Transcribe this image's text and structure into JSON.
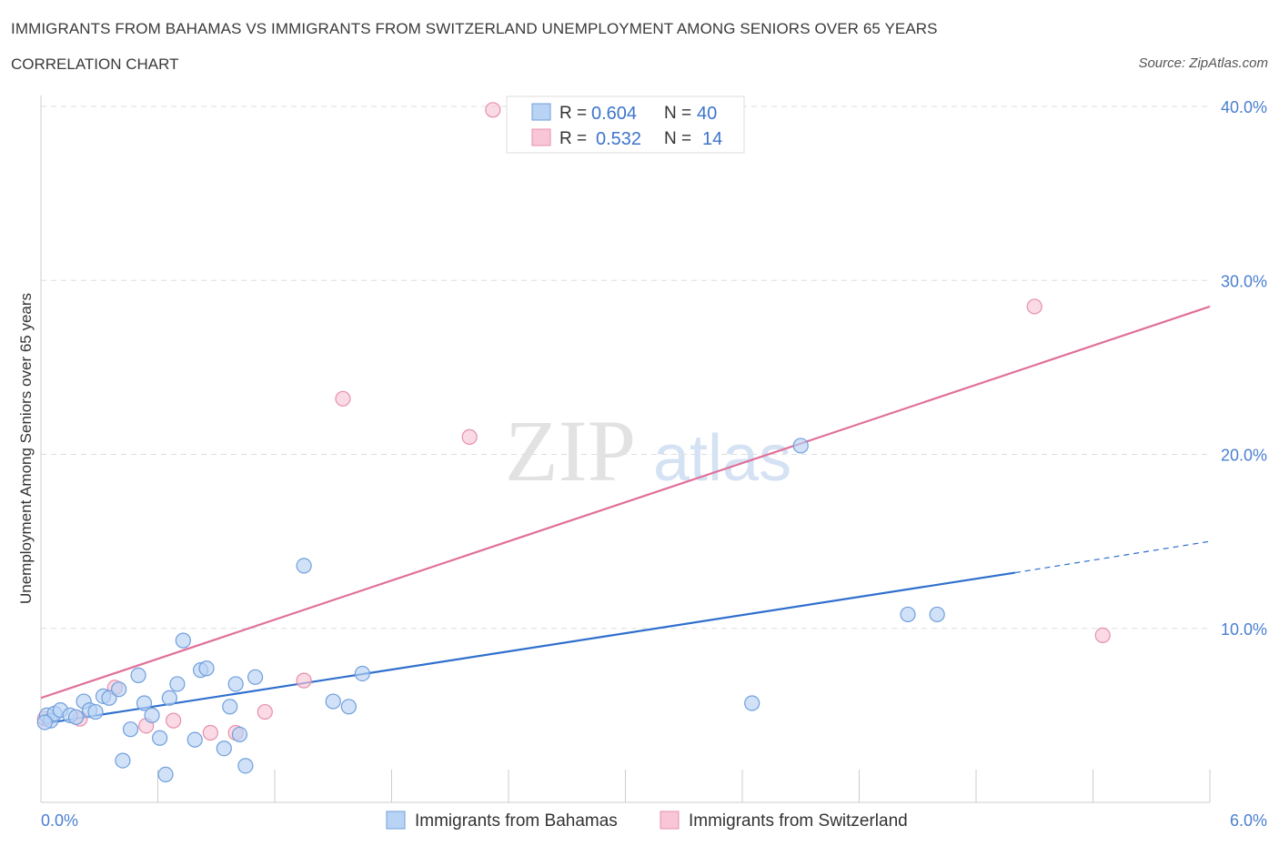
{
  "header": {
    "title": "IMMIGRANTS FROM BAHAMAS VS IMMIGRANTS FROM SWITZERLAND UNEMPLOYMENT AMONG SENIORS OVER 65 YEARS",
    "subtitle": "CORRELATION CHART",
    "source": "Source: ZipAtlas.com"
  },
  "watermark": "ZIPatlas",
  "colors": {
    "blue_fill": "#b9d3f5",
    "blue_stroke": "#6f9fdc",
    "blue_line": "#2f6fcd",
    "pink_fill": "#f8c6d6",
    "pink_stroke": "#e78fac",
    "pink_line": "#e0709a",
    "grid": "#dddddd",
    "tick_text": "#4a7fd0"
  },
  "chart_data": {
    "type": "scatter",
    "title": "IMMIGRANTS FROM BAHAMAS VS IMMIGRANTS FROM SWITZERLAND UNEMPLOYMENT AMONG SENIORS OVER 65 YEARS",
    "xlabel": "",
    "ylabel": "Unemployment Among Seniors over 65 years",
    "xlim": [
      0,
      6
    ],
    "ylim": [
      0,
      40
    ],
    "x_tick_labels": [
      "0.0%",
      "6.0%"
    ],
    "y_ticks": [
      10,
      20,
      30,
      40
    ],
    "y_tick_labels": [
      "10.0%",
      "20.0%",
      "30.0%",
      "40.0%"
    ],
    "grid": true,
    "legend_position": "top-center",
    "series": [
      {
        "name": "Immigrants from Bahamas",
        "color": "blue",
        "R": "0.604",
        "N": "40",
        "trend": {
          "x0": 0.0,
          "y0": 4.5,
          "x1": 5.0,
          "y1": 13.2,
          "dash_to_x": 6.0,
          "dash_to_y": 15.0
        },
        "points": [
          [
            0.03,
            5.0
          ],
          [
            0.05,
            4.7
          ],
          [
            0.07,
            5.1
          ],
          [
            0.1,
            5.3
          ],
          [
            0.15,
            5.0
          ],
          [
            0.22,
            5.8
          ],
          [
            0.25,
            5.3
          ],
          [
            0.28,
            5.2
          ],
          [
            0.32,
            6.1
          ],
          [
            0.35,
            6.0
          ],
          [
            0.4,
            6.5
          ],
          [
            0.42,
            2.4
          ],
          [
            0.46,
            4.2
          ],
          [
            0.5,
            7.3
          ],
          [
            0.53,
            5.7
          ],
          [
            0.57,
            5.0
          ],
          [
            0.61,
            3.7
          ],
          [
            0.64,
            1.6
          ],
          [
            0.66,
            6.0
          ],
          [
            0.7,
            6.8
          ],
          [
            0.73,
            9.3
          ],
          [
            0.79,
            3.6
          ],
          [
            0.82,
            7.6
          ],
          [
            0.85,
            7.7
          ],
          [
            0.94,
            3.1
          ],
          [
            0.97,
            5.5
          ],
          [
            1.0,
            6.8
          ],
          [
            1.02,
            3.9
          ],
          [
            1.05,
            2.1
          ],
          [
            1.1,
            7.2
          ],
          [
            1.35,
            13.6
          ],
          [
            1.5,
            5.8
          ],
          [
            1.58,
            5.5
          ],
          [
            1.65,
            7.4
          ],
          [
            3.65,
            5.7
          ],
          [
            3.9,
            20.5
          ],
          [
            4.45,
            10.8
          ],
          [
            4.6,
            10.8
          ],
          [
            0.02,
            4.6
          ],
          [
            0.18,
            4.9
          ]
        ]
      },
      {
        "name": "Immigrants from Switzerland",
        "color": "pink",
        "R": "0.532",
        "N": "14",
        "trend": {
          "x0": 0.0,
          "y0": 6.0,
          "x1": 6.0,
          "y1": 28.5
        },
        "points": [
          [
            0.02,
            4.8
          ],
          [
            0.2,
            4.8
          ],
          [
            0.38,
            6.6
          ],
          [
            0.54,
            4.4
          ],
          [
            0.68,
            4.7
          ],
          [
            0.87,
            4.0
          ],
          [
            1.0,
            4.0
          ],
          [
            1.15,
            5.2
          ],
          [
            1.35,
            7.0
          ],
          [
            1.55,
            23.2
          ],
          [
            2.2,
            21.0
          ],
          [
            2.32,
            39.8
          ],
          [
            5.1,
            28.5
          ],
          [
            5.45,
            9.6
          ]
        ]
      }
    ]
  },
  "legend": {
    "r_label": "R =",
    "n_label": "N ="
  }
}
